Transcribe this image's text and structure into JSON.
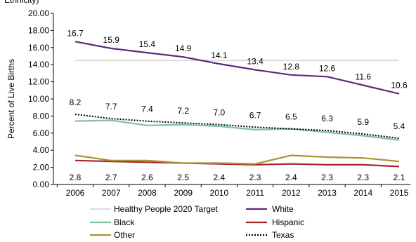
{
  "chart_data": {
    "type": "line",
    "title_fragment": "Ethnicity)",
    "ylabel": "Percent of Live Births",
    "xlabel": "",
    "ylim": [
      0,
      20
    ],
    "y_ticks": [
      "0.00",
      "2.00",
      "4.00",
      "6.00",
      "8.00",
      "10.00",
      "12.00",
      "14.00",
      "16.00",
      "18.00",
      "20.00"
    ],
    "categories": [
      "2006",
      "2007",
      "2008",
      "2009",
      "2010",
      "2011",
      "2012",
      "2013",
      "2014",
      "2015"
    ],
    "grid": false,
    "legend_position": "bottom",
    "series": [
      {
        "name": "Healthy People 2020 Target",
        "color": "#c8c8c8",
        "style": "solid",
        "values": [
          14.5,
          14.5,
          14.5,
          14.5,
          14.5,
          14.5,
          14.5,
          14.5,
          14.5,
          14.5
        ]
      },
      {
        "name": "White",
        "color": "#5b2a7e",
        "style": "solid",
        "values": [
          16.7,
          15.9,
          15.4,
          14.9,
          14.1,
          13.4,
          12.8,
          12.6,
          11.6,
          10.6
        ],
        "labels": [
          "16.7",
          "15.9",
          "15.4",
          "14.9",
          "14.1",
          "13.4",
          "12.8",
          "12.6",
          "11.6",
          "10.6"
        ]
      },
      {
        "name": "Black",
        "color": "#7fc29a",
        "style": "solid",
        "values": [
          7.4,
          7.5,
          6.9,
          7.0,
          6.8,
          6.4,
          6.5,
          6.1,
          5.7,
          5.2
        ]
      },
      {
        "name": "Hispanic",
        "color": "#a8242c",
        "style": "solid",
        "values": [
          2.8,
          2.7,
          2.6,
          2.5,
          2.4,
          2.3,
          2.4,
          2.3,
          2.3,
          2.1
        ],
        "labels": [
          "2.8",
          "2.7",
          "2.6",
          "2.5",
          "2.4",
          "2.3",
          "2.4",
          "2.3",
          "2.3",
          "2.1"
        ]
      },
      {
        "name": "Other",
        "color": "#a89530",
        "style": "solid",
        "values": [
          3.4,
          2.8,
          2.8,
          2.5,
          2.5,
          2.4,
          3.4,
          3.2,
          3.1,
          2.7
        ]
      },
      {
        "name": "Texas",
        "color": "#000000",
        "style": "dotted",
        "values": [
          8.2,
          7.7,
          7.4,
          7.2,
          7.0,
          6.7,
          6.5,
          6.3,
          5.9,
          5.4
        ],
        "labels": [
          "8.2",
          "7.7",
          "7.4",
          "7.2",
          "7.0",
          "6.7",
          "6.5",
          "6.3",
          "5.9",
          "5.4"
        ]
      }
    ],
    "legend_order": [
      [
        "Healthy People 2020 Target",
        "White"
      ],
      [
        "Black",
        "Hispanic"
      ],
      [
        "Other",
        "Texas"
      ]
    ]
  }
}
